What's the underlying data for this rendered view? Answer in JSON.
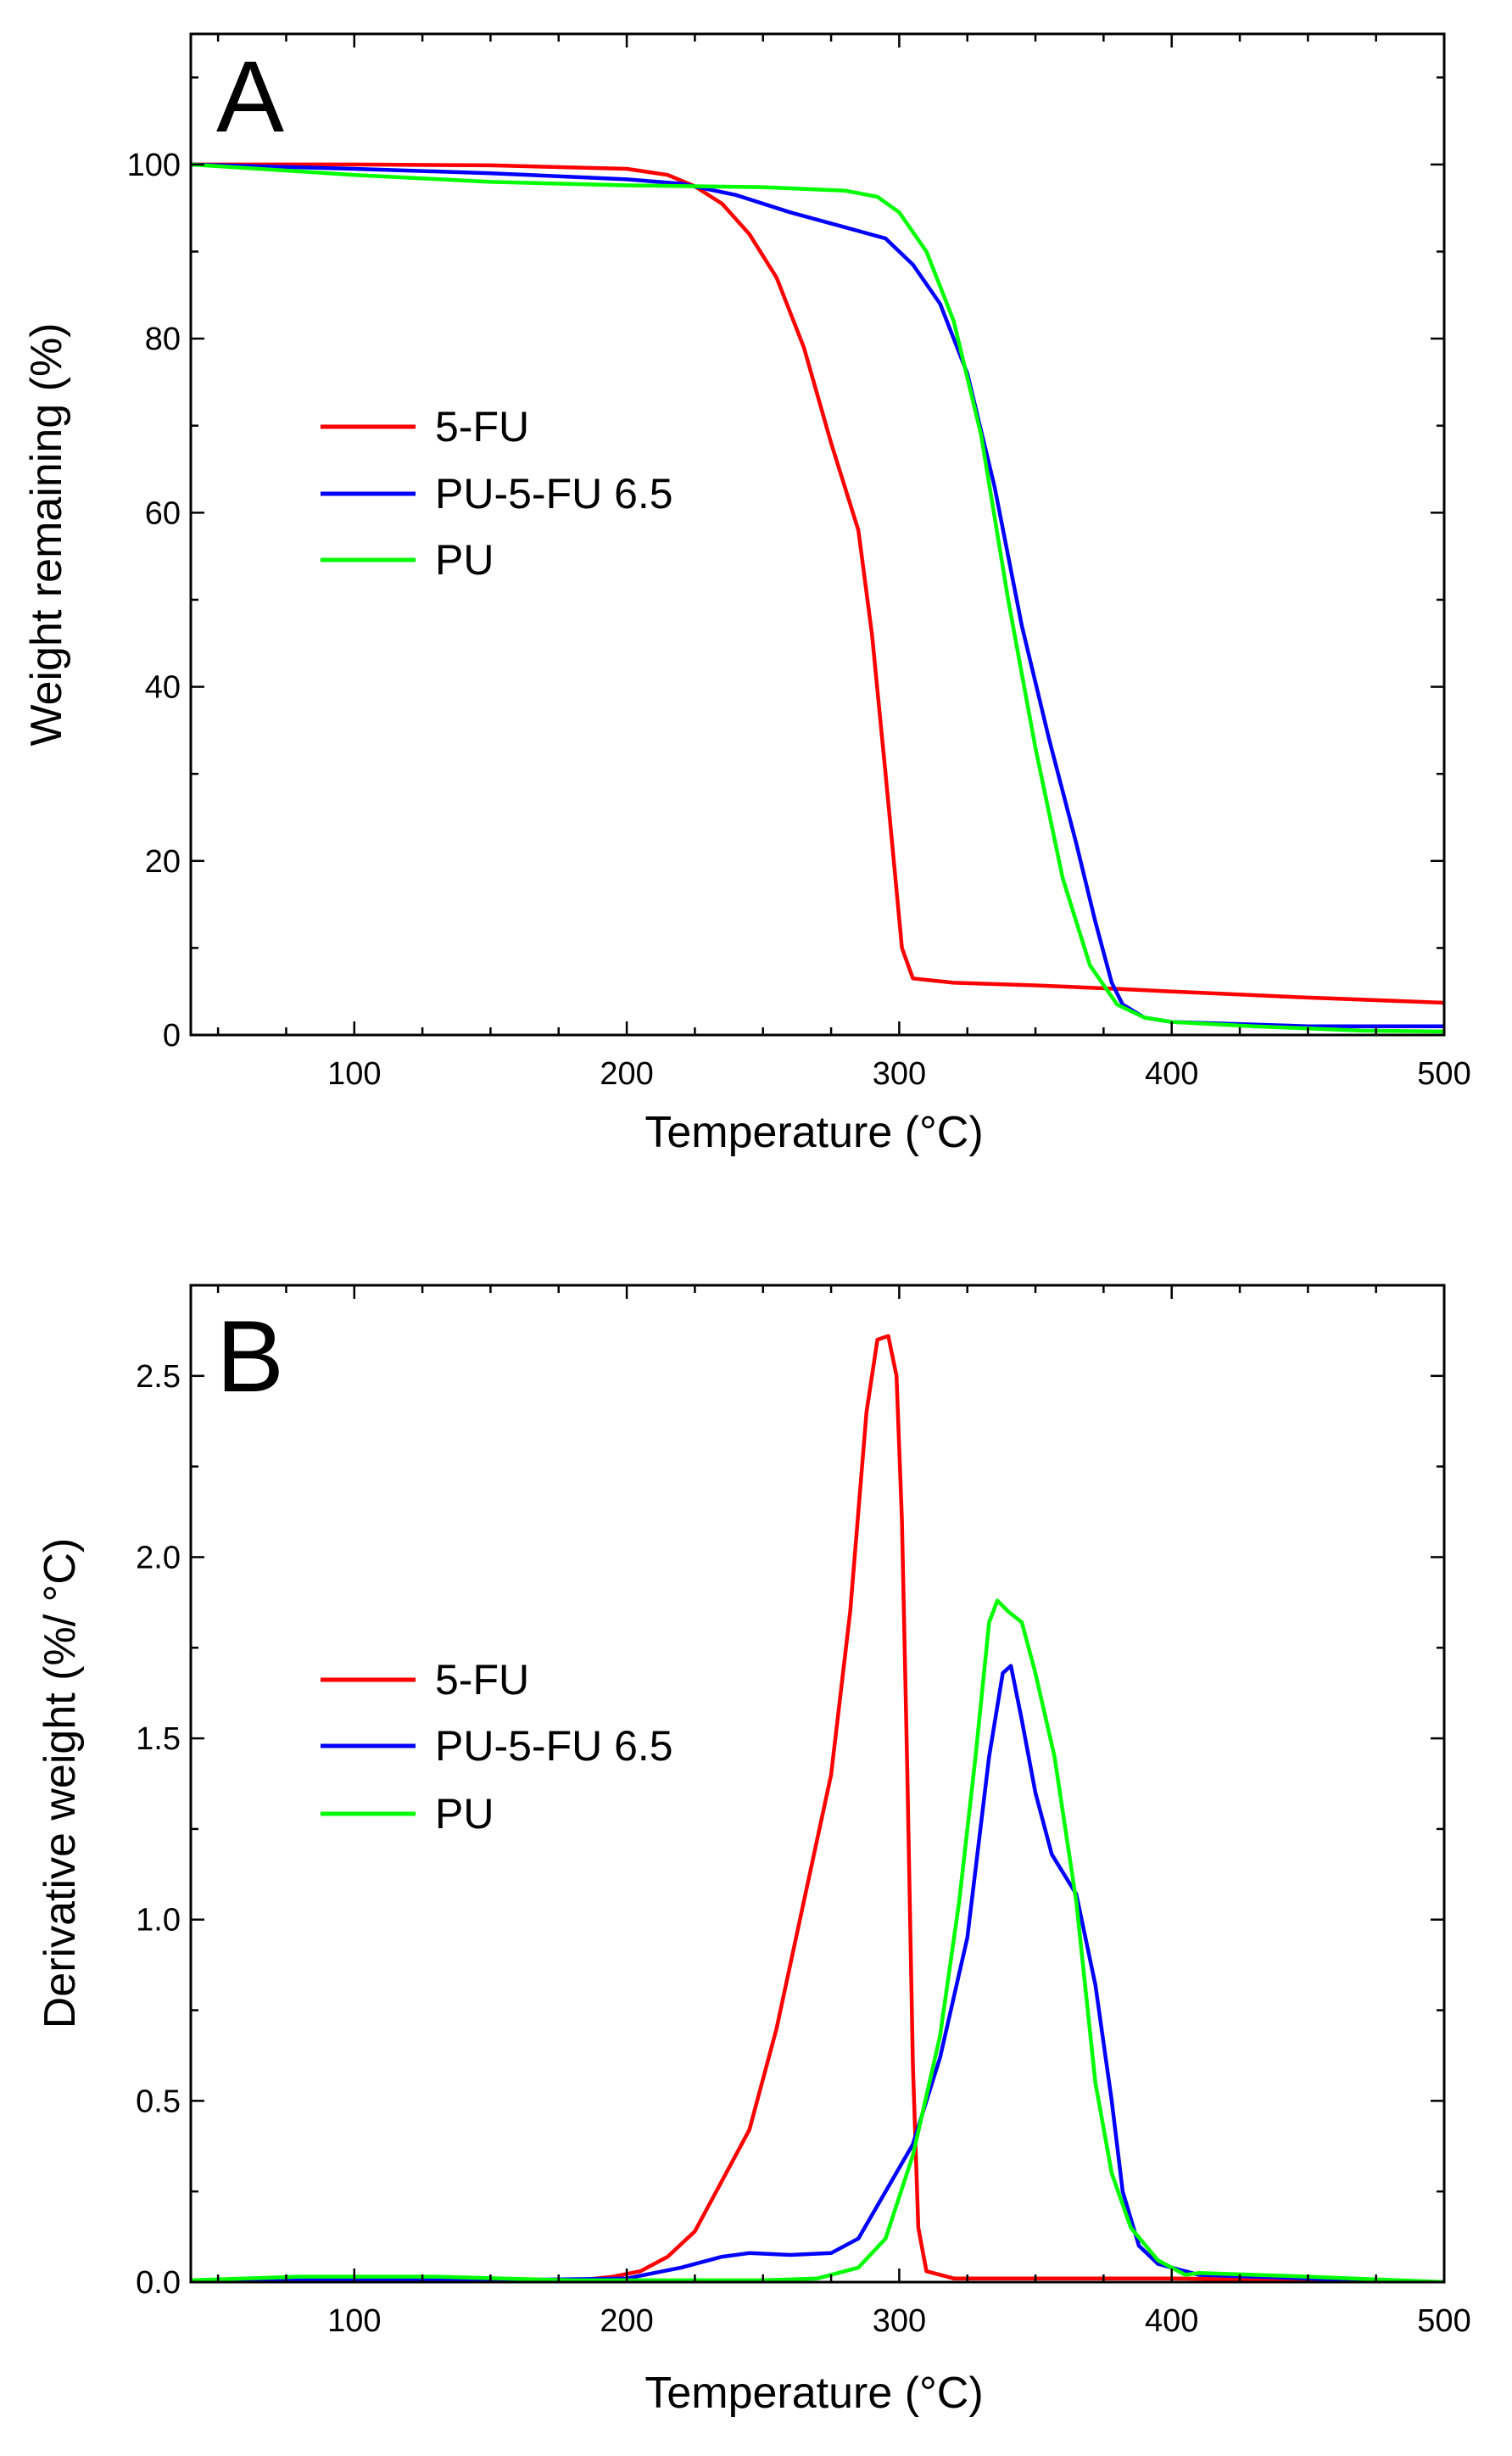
{
  "chart_data": [
    {
      "type": "line",
      "panel_label": "A",
      "xlabel": "Temperature (°C)",
      "ylabel": "Weight remaining (%)",
      "xlim": [
        40,
        500
      ],
      "ylim": [
        0,
        115
      ],
      "xticks": [
        100,
        200,
        300,
        400,
        500
      ],
      "yticks": [
        0,
        20,
        40,
        60,
        80,
        100
      ],
      "legend": {
        "placement": "center-left"
      },
      "series": [
        {
          "name": "5-FU",
          "color": "#ff0000",
          "points": [
            [
              40,
              100
            ],
            [
              100,
              100
            ],
            [
              150,
              99.9
            ],
            [
              200,
              99.5
            ],
            [
              215,
              98.8
            ],
            [
              225,
              97.5
            ],
            [
              235,
              95.5
            ],
            [
              245,
              92
            ],
            [
              255,
              87
            ],
            [
              265,
              79
            ],
            [
              275,
              68
            ],
            [
              285,
              58
            ],
            [
              290,
              46
            ],
            [
              295,
              30
            ],
            [
              298,
              20
            ],
            [
              301,
              10
            ],
            [
              305,
              6.5
            ],
            [
              320,
              6
            ],
            [
              350,
              5.7
            ],
            [
              380,
              5.3
            ],
            [
              400,
              5
            ],
            [
              450,
              4.3
            ],
            [
              500,
              3.7
            ]
          ]
        },
        {
          "name": "PU-5-FU 6.5",
          "color": "#0000ff",
          "points": [
            [
              40,
              100
            ],
            [
              100,
              99.5
            ],
            [
              150,
              99
            ],
            [
              200,
              98.3
            ],
            [
              220,
              97.8
            ],
            [
              240,
              96.5
            ],
            [
              260,
              94.5
            ],
            [
              280,
              92.8
            ],
            [
              295,
              91.5
            ],
            [
              305,
              88.5
            ],
            [
              315,
              84
            ],
            [
              325,
              76
            ],
            [
              335,
              63
            ],
            [
              345,
              47
            ],
            [
              355,
              34
            ],
            [
              365,
              22
            ],
            [
              372,
              13
            ],
            [
              378,
              6
            ],
            [
              382,
              3.5
            ],
            [
              390,
              2
            ],
            [
              400,
              1.5
            ],
            [
              450,
              1
            ],
            [
              500,
              1
            ]
          ]
        },
        {
          "name": "PU",
          "color": "#00ff00",
          "points": [
            [
              40,
              100
            ],
            [
              100,
              98.8
            ],
            [
              150,
              98
            ],
            [
              200,
              97.6
            ],
            [
              250,
              97.4
            ],
            [
              280,
              97
            ],
            [
              292,
              96.3
            ],
            [
              300,
              94.5
            ],
            [
              310,
              90
            ],
            [
              320,
              82
            ],
            [
              330,
              69
            ],
            [
              340,
              50
            ],
            [
              350,
              33
            ],
            [
              360,
              18
            ],
            [
              370,
              8
            ],
            [
              380,
              3.5
            ],
            [
              390,
              2
            ],
            [
              400,
              1.5
            ],
            [
              430,
              1
            ],
            [
              470,
              0.5
            ],
            [
              500,
              0.4
            ]
          ]
        }
      ]
    },
    {
      "type": "line",
      "panel_label": "B",
      "xlabel": "Temperature (°C)",
      "ylabel": "Derivative weight (%/ °C)",
      "xlim": [
        40,
        500
      ],
      "ylim": [
        0,
        2.75
      ],
      "xticks": [
        100,
        200,
        300,
        400,
        500
      ],
      "yticks": [
        0.0,
        0.5,
        1.0,
        1.5,
        2.0,
        2.5
      ],
      "ytick_labels": [
        "0.0",
        "0.5",
        "1.0",
        "1.5",
        "2.0",
        "2.5"
      ],
      "legend": {
        "placement": "center-left"
      },
      "series": [
        {
          "name": "5-FU",
          "color": "#ff0000",
          "points": [
            [
              40,
              0
            ],
            [
              150,
              0
            ],
            [
              180,
              0.003
            ],
            [
              195,
              0.015
            ],
            [
              205,
              0.03
            ],
            [
              215,
              0.07
            ],
            [
              225,
              0.14
            ],
            [
              235,
              0.28
            ],
            [
              245,
              0.42
            ],
            [
              255,
              0.7
            ],
            [
              265,
              1.05
            ],
            [
              275,
              1.4
            ],
            [
              282,
              1.85
            ],
            [
              288,
              2.4
            ],
            [
              292,
              2.6
            ],
            [
              296,
              2.61
            ],
            [
              299,
              2.5
            ],
            [
              301,
              2.1
            ],
            [
              303,
              1.4
            ],
            [
              305,
              0.6
            ],
            [
              307,
              0.15
            ],
            [
              310,
              0.03
            ],
            [
              320,
              0.01
            ],
            [
              400,
              0.01
            ],
            [
              500,
              0
            ]
          ]
        },
        {
          "name": "PU-5-FU 6.5",
          "color": "#0000ff",
          "points": [
            [
              40,
              0.005
            ],
            [
              150,
              0.005
            ],
            [
              200,
              0.01
            ],
            [
              220,
              0.04
            ],
            [
              235,
              0.07
            ],
            [
              245,
              0.08
            ],
            [
              260,
              0.075
            ],
            [
              275,
              0.08
            ],
            [
              285,
              0.12
            ],
            [
              295,
              0.25
            ],
            [
              305,
              0.38
            ],
            [
              315,
              0.62
            ],
            [
              325,
              0.95
            ],
            [
              333,
              1.45
            ],
            [
              338,
              1.68
            ],
            [
              341,
              1.7
            ],
            [
              345,
              1.55
            ],
            [
              350,
              1.35
            ],
            [
              356,
              1.18
            ],
            [
              365,
              1.07
            ],
            [
              372,
              0.82
            ],
            [
              378,
              0.5
            ],
            [
              382,
              0.25
            ],
            [
              388,
              0.1
            ],
            [
              395,
              0.05
            ],
            [
              410,
              0.02
            ],
            [
              450,
              0.01
            ],
            [
              500,
              0
            ]
          ]
        },
        {
          "name": "PU",
          "color": "#00ff00",
          "points": [
            [
              40,
              0.005
            ],
            [
              80,
              0.015
            ],
            [
              130,
              0.015
            ],
            [
              180,
              0.005
            ],
            [
              250,
              0.005
            ],
            [
              270,
              0.01
            ],
            [
              285,
              0.04
            ],
            [
              295,
              0.12
            ],
            [
              305,
              0.35
            ],
            [
              315,
              0.68
            ],
            [
              322,
              1.05
            ],
            [
              328,
              1.45
            ],
            [
              333,
              1.82
            ],
            [
              336,
              1.88
            ],
            [
              340,
              1.85
            ],
            [
              345,
              1.82
            ],
            [
              350,
              1.68
            ],
            [
              357,
              1.45
            ],
            [
              365,
              1.05
            ],
            [
              372,
              0.55
            ],
            [
              378,
              0.3
            ],
            [
              385,
              0.15
            ],
            [
              395,
              0.06
            ],
            [
              405,
              0.02
            ],
            [
              410,
              0.025
            ],
            [
              450,
              0.015
            ],
            [
              500,
              0
            ]
          ]
        }
      ]
    }
  ]
}
